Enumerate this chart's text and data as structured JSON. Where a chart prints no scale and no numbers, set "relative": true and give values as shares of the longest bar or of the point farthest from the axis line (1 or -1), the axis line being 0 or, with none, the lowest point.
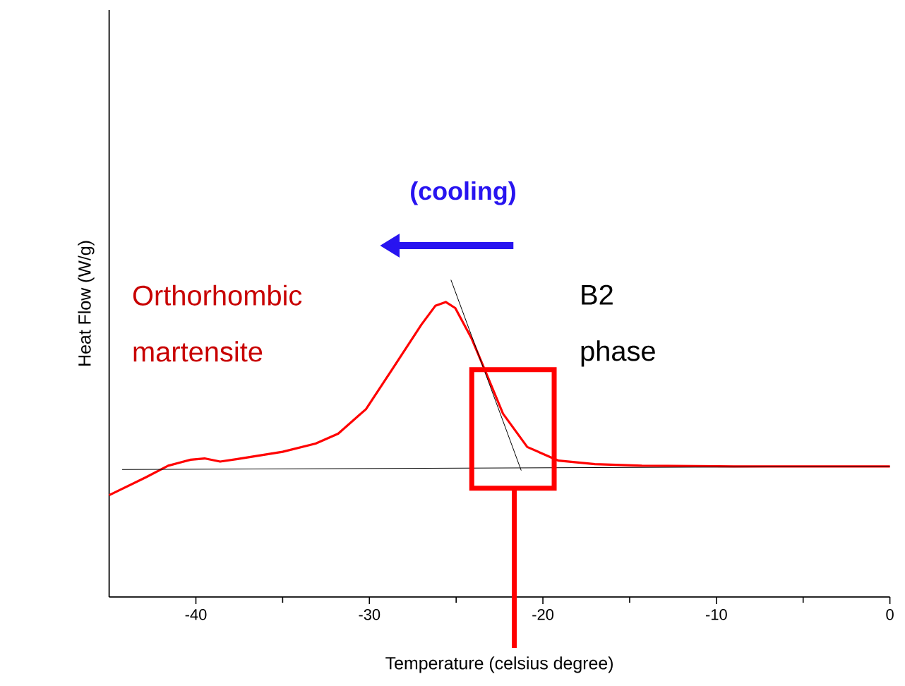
{
  "chart_data": {
    "type": "line",
    "relative": true,
    "xlabel": "Temperature (celsius degree)",
    "ylabel": "Heat Flow (W/g)",
    "xlim": [
      -45,
      0
    ],
    "xticks": [
      -40,
      -30,
      -20,
      -10,
      0
    ],
    "grid": false,
    "marker": "none",
    "line_style": "solid",
    "annotations": [
      "(cooling)",
      "Orthorhombic martensite",
      "B2 phase"
    ],
    "series": [
      {
        "color": "#ff0000",
        "x": [
          -45,
          -42.9,
          -41.6,
          -40.3,
          -39.5,
          -38.6,
          -37.6,
          -35.0,
          -33.1,
          -31.8,
          -30.2,
          -28.6,
          -27.0,
          -26.2,
          -25.6,
          -25.05,
          -24.1,
          -23.3,
          -22.3,
          -20.9,
          -19.1,
          -17.0,
          -14.3,
          -9.0,
          0
        ],
        "values": [
          0.321,
          0.377,
          0.414,
          0.433,
          0.437,
          0.427,
          0.435,
          0.458,
          0.484,
          0.515,
          0.592,
          0.725,
          0.859,
          0.918,
          0.93,
          0.911,
          0.814,
          0.71,
          0.578,
          0.473,
          0.43,
          0.419,
          0.414,
          0.412,
          0.412
        ]
      },
      {
        "color": "#000000",
        "x": [
          -44.25,
          0
        ],
        "values": [
          0.402,
          0.412
        ]
      },
      {
        "color": "#000000",
        "x": [
          -25.3,
          -21.25
        ],
        "values": [
          1.0,
          0.399
        ]
      }
    ]
  }
}
